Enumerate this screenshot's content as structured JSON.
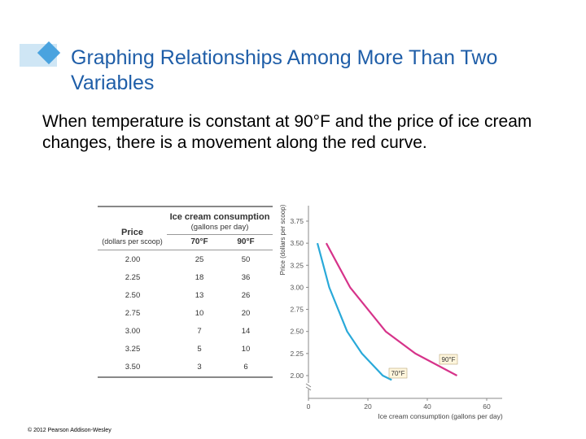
{
  "slide": {
    "title": "Graphing Relationships Among More Than Two Variables",
    "body": "When temperature is constant at 90°F and the price of ice cream changes, there is a movement along the red curve.",
    "copyright": "© 2012 Pearson Addison-Wesley"
  },
  "table": {
    "group_header": "Ice cream consumption",
    "group_subheader": "(gallons per day)",
    "price_header": "Price",
    "price_subheader": "(dollars per scoop)",
    "col_70": "70°F",
    "col_90": "90°F",
    "rows": [
      {
        "price": "2.00",
        "t70": "25",
        "t90": "50"
      },
      {
        "price": "2.25",
        "t70": "18",
        "t90": "36"
      },
      {
        "price": "2.50",
        "t70": "13",
        "t90": "26"
      },
      {
        "price": "2.75",
        "t70": "10",
        "t90": "20"
      },
      {
        "price": "3.00",
        "t70": "7",
        "t90": "14"
      },
      {
        "price": "3.25",
        "t70": "5",
        "t90": "10"
      },
      {
        "price": "3.50",
        "t70": "3",
        "t90": "6"
      }
    ]
  },
  "chart_data": {
    "type": "line",
    "xlabel": "Ice cream consumption (gallons per day)",
    "ylabel": "Price (dollars per scoop)",
    "xlim": [
      0,
      60
    ],
    "ylim": [
      2.0,
      3.75
    ],
    "x_ticks": [
      "0",
      "20",
      "40",
      "60"
    ],
    "y_ticks": [
      "2.00",
      "2.25",
      "2.50",
      "2.75",
      "3.00",
      "3.25",
      "3.50",
      "3.75"
    ],
    "axis_break": true,
    "series": [
      {
        "name": "70°F",
        "color": "#29a9d9",
        "x": [
          3,
          5,
          7,
          10,
          13,
          18,
          25,
          28
        ],
        "y": [
          3.5,
          3.25,
          3.0,
          2.75,
          2.5,
          2.25,
          2.0,
          1.95
        ]
      },
      {
        "name": "90°F",
        "color": "#d6338a",
        "x": [
          6,
          10,
          14,
          20,
          26,
          36,
          50
        ],
        "y": [
          3.5,
          3.25,
          3.0,
          2.75,
          2.5,
          2.25,
          2.0
        ]
      }
    ]
  }
}
